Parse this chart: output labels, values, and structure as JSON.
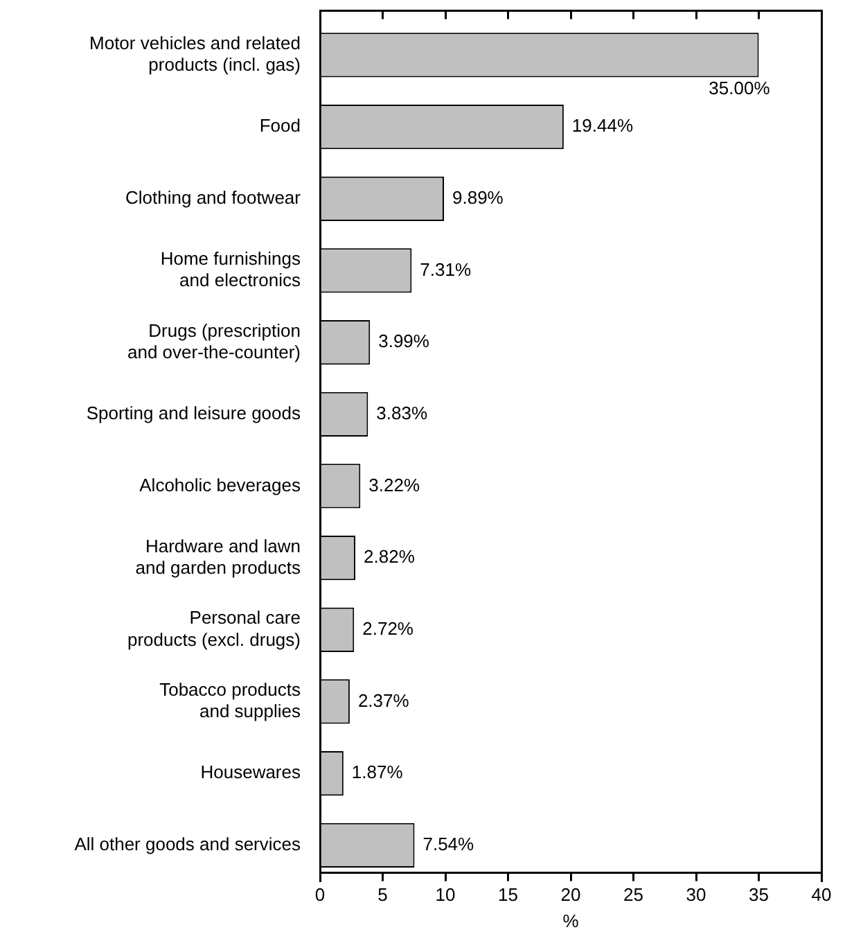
{
  "chart_data": {
    "type": "bar",
    "orientation": "horizontal",
    "xlabel": "%",
    "categories": [
      "Motor vehicles and related products (incl. gas)",
      "Food",
      "Clothing and footwear",
      "Home furnishings and electronics",
      "Drugs (prescription and over-the-counter)",
      "Sporting and leisure goods",
      "Alcoholic beverages",
      "Hardware and lawn and garden products",
      "Personal care products (excl. drugs)",
      "Tobacco products and supplies",
      "Housewares",
      "All other goods and services"
    ],
    "values": [
      35.0,
      19.44,
      9.89,
      7.31,
      3.99,
      3.83,
      3.22,
      2.82,
      2.72,
      2.37,
      1.87,
      7.54
    ],
    "value_labels": [
      "35.00%",
      "19.44%",
      "9.89%",
      "7.31%",
      "3.99%",
      "3.83%",
      "3.22%",
      "2.82%",
      "2.72%",
      "2.37%",
      "1.87%",
      "7.54%"
    ],
    "color": "#c0c0c0",
    "xlim": [
      0,
      40
    ],
    "xticks": [
      0,
      5,
      10,
      15,
      20,
      25,
      30,
      35,
      40
    ],
    "grid": false,
    "legend": false
  }
}
